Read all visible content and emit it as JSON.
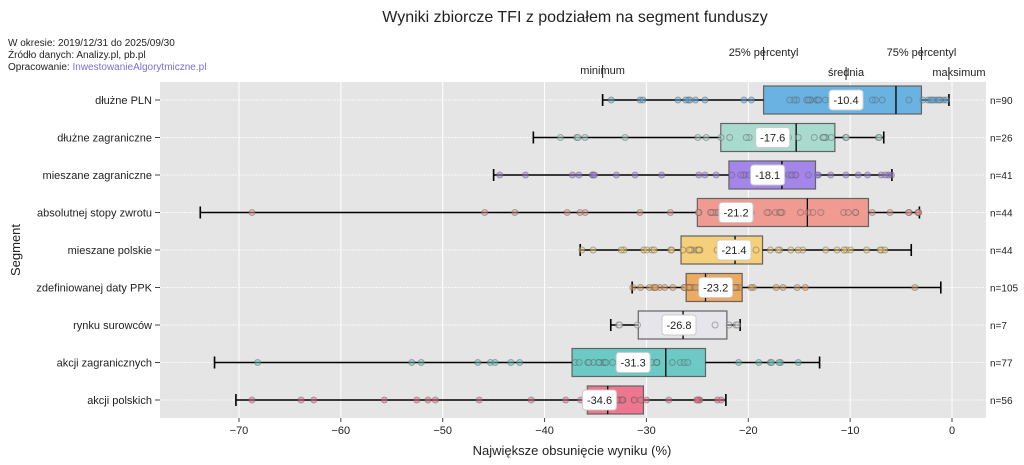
{
  "chart_data": {
    "type": "boxplot",
    "orientation": "horizontal",
    "title": "Wyniki zbiorcze TFI z podziałem na segment funduszy",
    "info": {
      "period": "W okresie: 2019/12/31 do 2025/09/30",
      "source": "Źródło danych: Analizy.pl, pb.pl",
      "author_prefix": "Opracowanie: ",
      "author_link": "InwestowanieAlgorytmiczne.pl",
      "link_color": "#7b6fd6"
    },
    "xlabel": "Największe obsunięcie wyniku (%)",
    "ylabel": "Segment",
    "xlim": [
      -78,
      3
    ],
    "xticks": [
      -70,
      -60,
      -50,
      -40,
      -30,
      -20,
      -10,
      0
    ],
    "xtick_labels": [
      "−70",
      "−60",
      "−50",
      "−40",
      "−30",
      "−20",
      "−10",
      "0"
    ],
    "grid": true,
    "legend_annotations": {
      "minimum": "minimum",
      "q1": "25% percentyl",
      "mean": "średnia",
      "q3": "75% percentyl",
      "maximum": "maksimum"
    },
    "series": [
      {
        "name": "dłużne PLN",
        "min": -34.3,
        "q1": -18.5,
        "median": -5.5,
        "q3": -3.0,
        "max": -0.3,
        "mean": -10.4,
        "mean_label": "-10.4",
        "n_label": "n=90",
        "color": "#5dade2"
      },
      {
        "name": "dłużne zagraniczne",
        "min": -41.1,
        "q1": -22.7,
        "median": -15.3,
        "q3": -11.5,
        "max": -6.7,
        "mean": -17.6,
        "mean_label": "-17.6",
        "n_label": "n=26",
        "color": "#a2d9cb"
      },
      {
        "name": "mieszane zagraniczne",
        "min": -45.0,
        "q1": -21.9,
        "median": -16.7,
        "q3": -13.4,
        "max": -5.9,
        "mean": -18.1,
        "mean_label": "-18.1",
        "n_label": "n=41",
        "color": "#9d7bea"
      },
      {
        "name": "absolutnej stopy zwrotu",
        "min": -73.8,
        "q1": -25.0,
        "median": -14.2,
        "q3": -8.2,
        "max": -3.2,
        "mean": -21.2,
        "mean_label": "-21.2",
        "n_label": "n=44",
        "color": "#f1948a"
      },
      {
        "name": "mieszane polskie",
        "min": -36.5,
        "q1": -26.6,
        "median": -21.3,
        "q3": -18.6,
        "max": -4.0,
        "mean": -21.4,
        "mean_label": "-21.4",
        "n_label": "n=44",
        "color": "#f7cd6e"
      },
      {
        "name": "zdefiniowanej daty PPK",
        "min": -31.4,
        "q1": -26.1,
        "median": -24.2,
        "q3": -20.6,
        "max": -1.1,
        "mean": -23.2,
        "mean_label": "-23.2",
        "n_label": "n=105",
        "color": "#f0a452"
      },
      {
        "name": "rynku surowców",
        "min": -33.5,
        "q1": -30.8,
        "median": -26.4,
        "q3": -22.1,
        "max": -20.8,
        "mean": -26.8,
        "mean_label": "-26.8",
        "n_label": "n=7",
        "color": "#e6e6ec"
      },
      {
        "name": "akcji zagranicznych",
        "min": -72.4,
        "q1": -37.3,
        "median": -28.1,
        "q3": -24.2,
        "max": -13.0,
        "mean": -31.3,
        "mean_label": "-31.3",
        "n_label": "n=77",
        "color": "#5fc7c2"
      },
      {
        "name": "akcji polskich",
        "min": -70.3,
        "q1": -35.8,
        "median": -33.8,
        "q3": -30.3,
        "max": -22.2,
        "mean": -34.6,
        "mean_label": "-34.6",
        "n_label": "n=56",
        "color": "#f06b86"
      }
    ]
  }
}
